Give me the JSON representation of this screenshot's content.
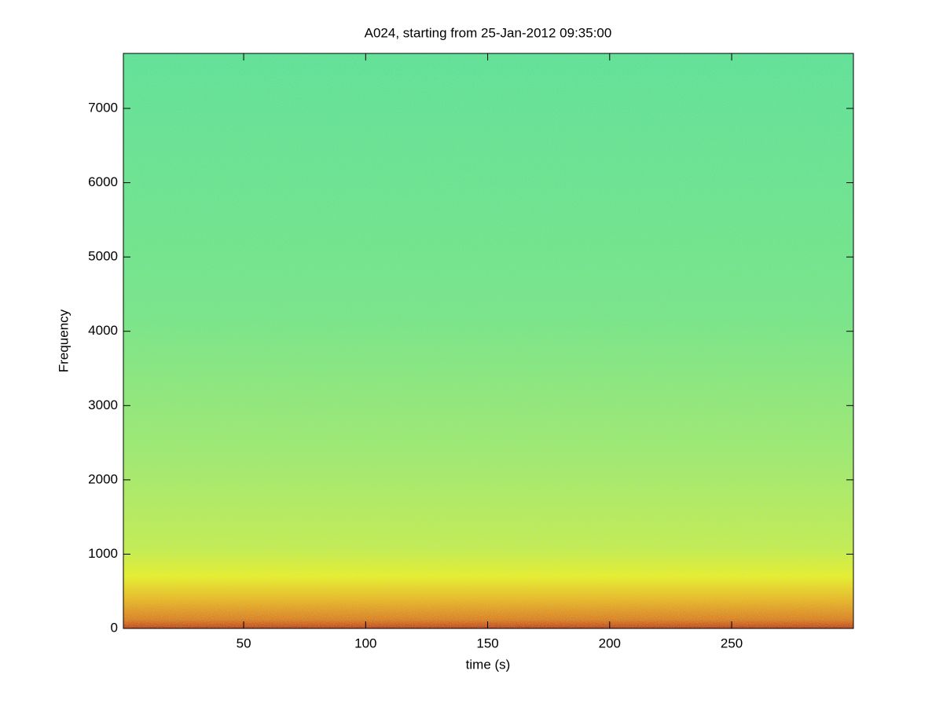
{
  "chart_data": {
    "type": "spectrogram",
    "title": "A024, starting from 25-Jan-2012 09:35:00",
    "x_label": "time (s)",
    "y_label": "Frequency",
    "xlim": [
      0.7,
      299.9
    ],
    "xticks": [
      50,
      100,
      150,
      200,
      250
    ],
    "ylim": [
      0,
      7740
    ],
    "yticks": [
      0,
      1000,
      2000,
      3000,
      4000,
      5000,
      6000,
      7000
    ]
  }
}
